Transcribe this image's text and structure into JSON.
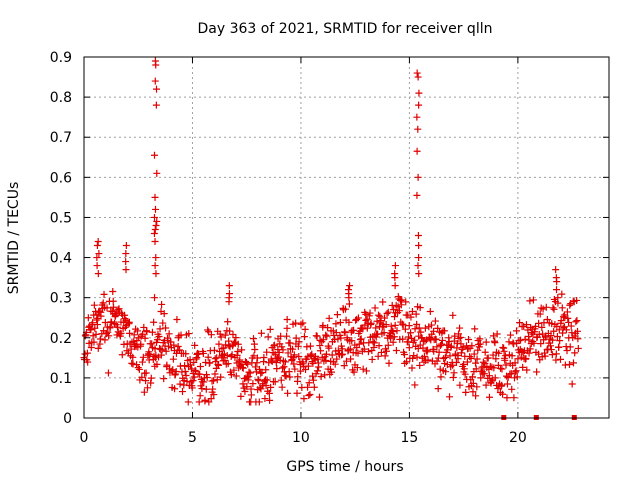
{
  "chart_data": {
    "type": "scatter",
    "title": "Day 363 of 2021, SRMTID for receiver qlln",
    "xlabel": "GPS time / hours",
    "ylabel": "SRMTID / TECUs",
    "xlim": [
      0,
      24.2
    ],
    "ylim": [
      0,
      0.9
    ],
    "x_ticks": [
      0,
      5,
      10,
      15,
      20
    ],
    "x_tick_labels": [
      "0",
      "5",
      "10",
      "15",
      "20"
    ],
    "y_ticks": [
      0,
      0.1,
      0.2,
      0.3,
      0.4,
      0.5,
      0.6,
      0.7,
      0.8,
      0.9
    ],
    "y_tick_labels": [
      "0",
      "0.1",
      "0.2",
      "0.3",
      "0.4",
      "0.5",
      "0.6",
      "0.7",
      "0.8",
      "0.9"
    ],
    "grid": true,
    "marker": "+",
    "color": "#e00000",
    "trend": {
      "x": [
        0,
        0.5,
        1.0,
        1.5,
        2.0,
        2.5,
        3.0,
        3.5,
        4.0,
        4.5,
        5.0,
        5.5,
        6.0,
        6.5,
        7.0,
        7.5,
        8.0,
        8.5,
        9.0,
        9.5,
        10.0,
        10.5,
        11.0,
        11.5,
        12.0,
        12.5,
        13.0,
        13.5,
        14.0,
        14.5,
        15.0,
        15.5,
        16.0,
        16.5,
        17.0,
        17.5,
        18.0,
        18.5,
        19.0,
        19.5,
        20.0,
        20.5,
        21.0,
        21.5,
        22.0,
        22.5,
        22.8
      ],
      "y": [
        0.19,
        0.24,
        0.22,
        0.26,
        0.21,
        0.17,
        0.15,
        0.2,
        0.15,
        0.13,
        0.12,
        0.11,
        0.14,
        0.18,
        0.16,
        0.12,
        0.1,
        0.12,
        0.14,
        0.15,
        0.15,
        0.14,
        0.15,
        0.17,
        0.21,
        0.2,
        0.22,
        0.21,
        0.23,
        0.24,
        0.18,
        0.2,
        0.18,
        0.16,
        0.15,
        0.14,
        0.14,
        0.15,
        0.13,
        0.12,
        0.15,
        0.2,
        0.19,
        0.21,
        0.23,
        0.2,
        0.19
      ]
    },
    "spikes": [
      {
        "x": 3.3,
        "values": [
          0.89,
          0.88,
          0.84,
          0.82,
          0.78,
          0.655,
          0.61,
          0.55,
          0.52,
          0.5,
          0.49,
          0.48,
          0.47,
          0.46,
          0.44,
          0.4,
          0.38,
          0.36,
          0.3
        ]
      },
      {
        "x": 15.4,
        "values": [
          0.86,
          0.85,
          0.81,
          0.78,
          0.75,
          0.72,
          0.665,
          0.6,
          0.555,
          0.455,
          0.43,
          0.4,
          0.38,
          0.36
        ]
      },
      {
        "x": 0.65,
        "values": [
          0.44,
          0.43,
          0.41,
          0.4,
          0.38,
          0.36
        ]
      },
      {
        "x": 1.95,
        "values": [
          0.43,
          0.41,
          0.39,
          0.37
        ]
      },
      {
        "x": 6.7,
        "values": [
          0.33,
          0.31,
          0.3,
          0.29
        ]
      },
      {
        "x": 12.2,
        "values": [
          0.33,
          0.32,
          0.31,
          0.3
        ]
      },
      {
        "x": 14.3,
        "values": [
          0.38,
          0.36,
          0.35,
          0.33
        ]
      },
      {
        "x": 21.8,
        "values": [
          0.37,
          0.35,
          0.34,
          0.32,
          0.3
        ]
      }
    ],
    "gap_markers_x": [
      19.35,
      20.85,
      22.6
    ],
    "series": [
      {
        "name": "SRMTID",
        "x_range": [
          0,
          22.8
        ]
      }
    ]
  }
}
